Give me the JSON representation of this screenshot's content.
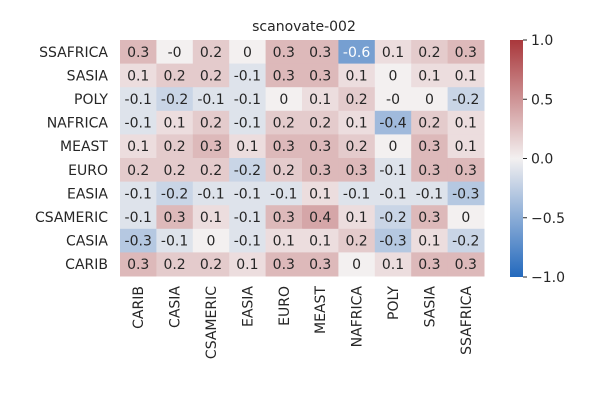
{
  "chart_data": {
    "type": "heatmap",
    "title": "scanovate-002",
    "xlabel": "",
    "ylabel": "",
    "x_categories": [
      "CARIB",
      "CASIA",
      "CSAMERIC",
      "EASIA",
      "EURO",
      "MEAST",
      "NAFRICA",
      "POLY",
      "SASIA",
      "SSAFRICA"
    ],
    "y_categories": [
      "SSAFRICA",
      "SASIA",
      "POLY",
      "NAFRICA",
      "MEAST",
      "EURO",
      "EASIA",
      "CSAMERIC",
      "CASIA",
      "CARIB"
    ],
    "values": [
      [
        0.3,
        -0.0,
        0.2,
        0.0,
        0.3,
        0.3,
        -0.6,
        0.1,
        0.2,
        0.3
      ],
      [
        0.1,
        0.2,
        0.2,
        -0.1,
        0.3,
        0.3,
        0.1,
        0.0,
        0.1,
        0.1
      ],
      [
        -0.1,
        -0.2,
        -0.1,
        -0.1,
        0.0,
        0.1,
        0.2,
        -0.0,
        0.0,
        -0.2
      ],
      [
        -0.1,
        0.1,
        0.2,
        -0.1,
        0.2,
        0.2,
        0.1,
        -0.4,
        0.2,
        0.1
      ],
      [
        0.1,
        0.2,
        0.3,
        0.1,
        0.3,
        0.3,
        0.2,
        0.0,
        0.3,
        0.1
      ],
      [
        0.2,
        0.2,
        0.2,
        -0.2,
        0.2,
        0.3,
        0.3,
        -0.1,
        0.3,
        0.3
      ],
      [
        -0.1,
        -0.2,
        -0.1,
        -0.1,
        -0.1,
        0.1,
        -0.1,
        -0.1,
        -0.1,
        -0.3
      ],
      [
        -0.1,
        0.3,
        0.1,
        -0.1,
        0.3,
        0.4,
        0.1,
        -0.2,
        0.3,
        0.0
      ],
      [
        -0.3,
        -0.1,
        0.0,
        -0.1,
        0.1,
        0.1,
        0.2,
        -0.3,
        0.1,
        -0.2
      ],
      [
        0.3,
        0.2,
        0.2,
        0.1,
        0.3,
        0.3,
        0.0,
        0.1,
        0.3,
        0.3
      ]
    ],
    "annotations": [
      [
        "0.3",
        "-0",
        "0.2",
        "0",
        "0.3",
        "0.3",
        "-0.6",
        "0.1",
        "0.2",
        "0.3"
      ],
      [
        "0.1",
        "0.2",
        "0.2",
        "-0.1",
        "0.3",
        "0.3",
        "0.1",
        "0",
        "0.1",
        "0.1"
      ],
      [
        "-0.1",
        "-0.2",
        "-0.1",
        "-0.1",
        "0",
        "0.1",
        "0.2",
        "-0",
        "0",
        "-0.2"
      ],
      [
        "-0.1",
        "0.1",
        "0.2",
        "-0.1",
        "0.2",
        "0.2",
        "0.1",
        "-0.4",
        "0.2",
        "0.1"
      ],
      [
        "0.1",
        "0.2",
        "0.3",
        "0.1",
        "0.3",
        "0.3",
        "0.2",
        "0",
        "0.3",
        "0.1"
      ],
      [
        "0.2",
        "0.2",
        "0.2",
        "-0.2",
        "0.2",
        "0.3",
        "0.3",
        "-0.1",
        "0.3",
        "0.3"
      ],
      [
        "-0.1",
        "-0.2",
        "-0.1",
        "-0.1",
        "-0.1",
        "0.1",
        "-0.1",
        "-0.1",
        "-0.1",
        "-0.3"
      ],
      [
        "-0.1",
        "0.3",
        "0.1",
        "-0.1",
        "0.3",
        "0.4",
        "0.1",
        "-0.2",
        "0.3",
        "0"
      ],
      [
        "-0.3",
        "-0.1",
        "0",
        "-0.1",
        "0.1",
        "0.1",
        "0.2",
        "-0.3",
        "0.1",
        "-0.2"
      ],
      [
        "0.3",
        "0.2",
        "0.2",
        "0.1",
        "0.3",
        "0.3",
        "0",
        "0.1",
        "0.3",
        "0.3"
      ]
    ],
    "colormap": "vlag",
    "vmin": -1.0,
    "vmax": 1.0,
    "colorbar": {
      "ticks": [
        1.0,
        0.5,
        0.0,
        -0.5,
        -1.0
      ],
      "tick_labels": [
        "1.0",
        "0.5",
        "0.0",
        "−0.5",
        "−1.0"
      ]
    },
    "colors": {
      "low": "#2369bd",
      "mid": "#f3f0f0",
      "high": "#a9373b",
      "text_dark": "#262626",
      "text_light": "#ffffff"
    }
  }
}
